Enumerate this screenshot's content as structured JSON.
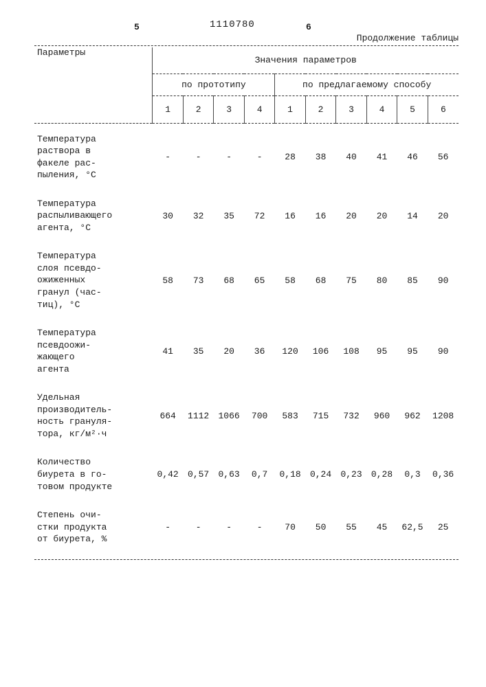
{
  "doc_number": "1110780",
  "left_marker": "5",
  "right_marker": "6",
  "continuation": "Продолжение таблицы",
  "headers": {
    "params": "Параметры",
    "values": "Значения параметров",
    "proto": "по прототипу",
    "proposed": "по предлагаемому способу",
    "proto_nums": [
      "1",
      "2",
      "3",
      "4"
    ],
    "proposed_nums": [
      "1",
      "2",
      "3",
      "4",
      "5",
      "6"
    ]
  },
  "rows": [
    {
      "label": "Температура\nраствора в\nфакеле рас-\nпыления, °С",
      "vals": [
        "-",
        "-",
        "-",
        "-",
        "28",
        "38",
        "40",
        "41",
        "46",
        "56"
      ]
    },
    {
      "label": "Температура\nраспыливающего\nагента, °С",
      "vals": [
        "30",
        "32",
        "35",
        "72",
        "16",
        "16",
        "20",
        "20",
        "14",
        "20"
      ]
    },
    {
      "label": "Температура\nслоя псевдо-\nожиженных\nгранул (час-\nтиц), °С",
      "vals": [
        "58",
        "73",
        "68",
        "65",
        "58",
        "68",
        "75",
        "80",
        "85",
        "90"
      ]
    },
    {
      "label": "Температура\nпсевдоожи-\nжающего\nагента",
      "vals": [
        "41",
        "35",
        "20",
        "36",
        "120",
        "106",
        "108",
        "95",
        "95",
        "90"
      ]
    },
    {
      "label": "Удельная\nпроизводитель-\nность грануля-\nтора, кг/м²·ч",
      "vals": [
        "664",
        "1112",
        "1066",
        "700",
        "583",
        "715",
        "732",
        "960",
        "962",
        "1208"
      ]
    },
    {
      "label": "Количество\nбиурета в го-\nтовом продукте",
      "vals": [
        "0,42",
        "0,57",
        "0,63",
        "0,7",
        "0,18",
        "0,24",
        "0,23",
        "0,28",
        "0,3",
        "0,36"
      ]
    },
    {
      "label": "Степень очи-\nстки продукта\nот биурета, %",
      "vals": [
        "-",
        "-",
        "-",
        "-",
        "70",
        "50",
        "55",
        "45",
        "62,5",
        "25"
      ]
    }
  ]
}
